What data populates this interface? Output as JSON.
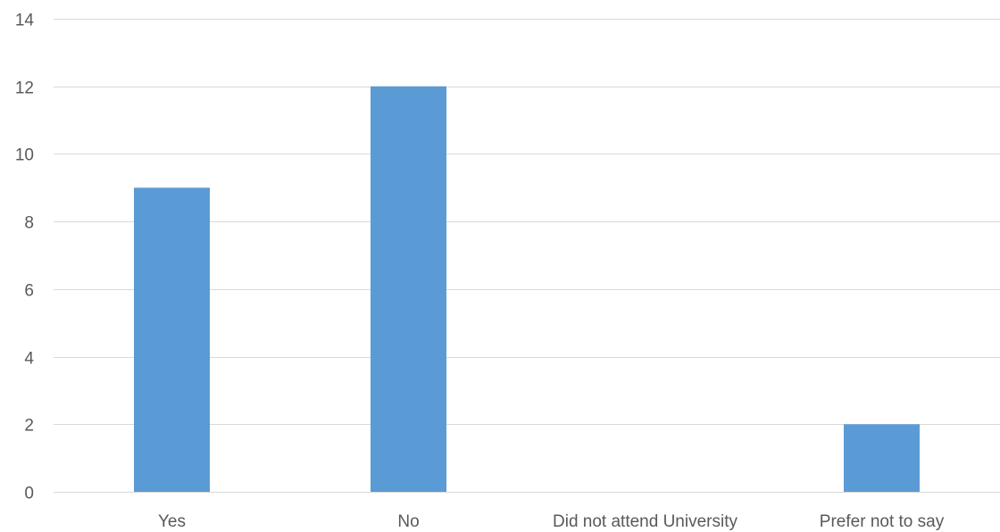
{
  "chart_data": {
    "type": "bar",
    "categories": [
      "Yes",
      "No",
      "Did not attend University",
      "Prefer not to say"
    ],
    "values": [
      9,
      12,
      0,
      2
    ],
    "title": "",
    "xlabel": "",
    "ylabel": "",
    "ylim": [
      0,
      14
    ],
    "yticks": [
      0,
      2,
      4,
      6,
      8,
      10,
      12,
      14
    ],
    "grid": true,
    "legend": "none",
    "colors": {
      "bar": "#5b9bd5",
      "grid": "#d9d9d9",
      "text": "#595959"
    }
  }
}
